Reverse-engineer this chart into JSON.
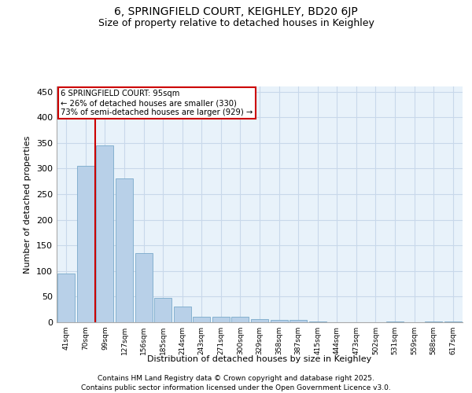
{
  "title1": "6, SPRINGFIELD COURT, KEIGHLEY, BD20 6JP",
  "title2": "Size of property relative to detached houses in Keighley",
  "xlabel": "Distribution of detached houses by size in Keighley",
  "ylabel": "Number of detached properties",
  "categories": [
    "41sqm",
    "70sqm",
    "99sqm",
    "127sqm",
    "156sqm",
    "185sqm",
    "214sqm",
    "243sqm",
    "271sqm",
    "300sqm",
    "329sqm",
    "358sqm",
    "387sqm",
    "415sqm",
    "444sqm",
    "473sqm",
    "502sqm",
    "531sqm",
    "559sqm",
    "588sqm",
    "617sqm"
  ],
  "values": [
    95,
    305,
    345,
    280,
    135,
    47,
    30,
    10,
    11,
    10,
    6,
    5,
    4,
    2,
    0,
    0,
    0,
    2,
    0,
    1,
    2
  ],
  "bar_color": "#b8d0e8",
  "bar_edge_color": "#7aaaca",
  "grid_color": "#c8d8ea",
  "bg_color": "#e8f2fa",
  "vline_x": 1.5,
  "vline_color": "#cc0000",
  "annotation_text": "6 SPRINGFIELD COURT: 95sqm\n← 26% of detached houses are smaller (330)\n73% of semi-detached houses are larger (929) →",
  "annotation_box_color": "#cc0000",
  "ylim": [
    0,
    460
  ],
  "yticks": [
    0,
    50,
    100,
    150,
    200,
    250,
    300,
    350,
    400,
    450
  ],
  "footer1": "Contains HM Land Registry data © Crown copyright and database right 2025.",
  "footer2": "Contains public sector information licensed under the Open Government Licence v3.0."
}
